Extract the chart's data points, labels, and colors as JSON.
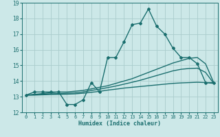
{
  "background_color": "#cce8e8",
  "grid_color": "#aacccc",
  "line_color": "#1a6e6e",
  "xlabel": "Humidex (Indice chaleur)",
  "xlim": [
    -0.5,
    23.5
  ],
  "ylim": [
    12,
    19
  ],
  "yticks": [
    12,
    13,
    14,
    15,
    16,
    17,
    18,
    19
  ],
  "xticks": [
    0,
    1,
    2,
    3,
    4,
    5,
    6,
    7,
    8,
    9,
    10,
    11,
    12,
    13,
    14,
    15,
    16,
    17,
    18,
    19,
    20,
    21,
    22,
    23
  ],
  "series": [
    {
      "x": [
        0,
        1,
        2,
        3,
        4,
        5,
        6,
        7,
        8,
        9,
        10,
        11,
        12,
        13,
        14,
        15,
        16,
        17,
        18,
        19,
        20,
        21,
        22,
        23
      ],
      "y": [
        13.1,
        13.3,
        13.3,
        13.3,
        13.3,
        12.5,
        12.5,
        12.8,
        13.9,
        13.3,
        15.5,
        15.5,
        16.5,
        17.6,
        17.7,
        18.6,
        17.5,
        17.0,
        16.1,
        15.5,
        15.5,
        15.1,
        13.9,
        13.9
      ],
      "marker": "D",
      "markersize": 2.0,
      "linewidth": 1.0
    },
    {
      "x": [
        0,
        1,
        2,
        3,
        4,
        5,
        6,
        7,
        8,
        9,
        10,
        11,
        12,
        13,
        14,
        15,
        16,
        17,
        18,
        19,
        20,
        21,
        22,
        23
      ],
      "y": [
        13.1,
        13.15,
        13.2,
        13.25,
        13.3,
        13.3,
        13.35,
        13.4,
        13.5,
        13.6,
        13.7,
        13.85,
        14.0,
        14.15,
        14.35,
        14.55,
        14.75,
        14.95,
        15.15,
        15.3,
        15.45,
        15.5,
        15.1,
        13.9
      ],
      "marker": null,
      "markersize": 0,
      "linewidth": 1.0
    },
    {
      "x": [
        0,
        1,
        2,
        3,
        4,
        5,
        6,
        7,
        8,
        9,
        10,
        11,
        12,
        13,
        14,
        15,
        16,
        17,
        18,
        19,
        20,
        21,
        22,
        23
      ],
      "y": [
        13.1,
        13.12,
        13.15,
        13.18,
        13.2,
        13.22,
        13.25,
        13.3,
        13.4,
        13.48,
        13.58,
        13.68,
        13.8,
        13.92,
        14.05,
        14.2,
        14.35,
        14.5,
        14.65,
        14.75,
        14.8,
        14.82,
        14.55,
        13.85
      ],
      "marker": null,
      "markersize": 0,
      "linewidth": 1.0
    },
    {
      "x": [
        0,
        1,
        2,
        3,
        4,
        5,
        6,
        7,
        8,
        9,
        10,
        11,
        12,
        13,
        14,
        15,
        16,
        17,
        18,
        19,
        20,
        21,
        22,
        23
      ],
      "y": [
        13.1,
        13.1,
        13.12,
        13.14,
        13.15,
        13.16,
        13.18,
        13.22,
        13.28,
        13.34,
        13.42,
        13.48,
        13.55,
        13.6,
        13.65,
        13.7,
        13.75,
        13.8,
        13.85,
        13.88,
        13.9,
        13.92,
        13.9,
        13.85
      ],
      "marker": null,
      "markersize": 0,
      "linewidth": 1.0
    }
  ]
}
